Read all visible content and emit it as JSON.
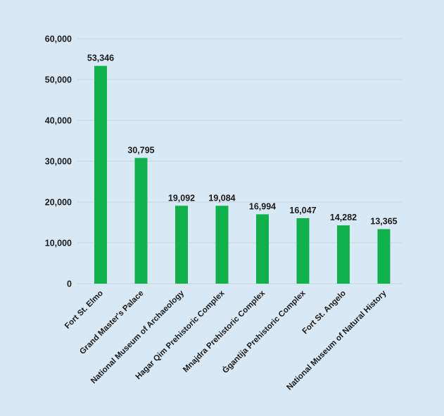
{
  "chart_data": {
    "type": "bar",
    "title": "",
    "xlabel": "",
    "ylabel": "",
    "ylim": [
      0,
      60000
    ],
    "yticks": [
      0,
      10000,
      20000,
      30000,
      40000,
      50000,
      60000
    ],
    "ytick_labels": [
      "0",
      "10,000",
      "20,000",
      "30,000",
      "40,000",
      "50,000",
      "60,000"
    ],
    "grid": true,
    "legend": "none",
    "bar_color": "#10b14a",
    "categories": [
      "Fort St. Elmo",
      "Grand Master's Palace",
      "National Museum of Archaeology",
      "Hagar Qim Prehistoric Complex",
      "Mnajdra Prehistoric Complex",
      "Ġgantija Prehistoric Complex",
      "Fort St. Angelo",
      "National Museum of Natural History"
    ],
    "values": [
      53346,
      30795,
      19092,
      19084,
      16994,
      16047,
      14282,
      13365
    ],
    "value_labels": [
      "53,346",
      "30,795",
      "19,092",
      "19,084",
      "16,994",
      "16,047",
      "14,282",
      "13,365"
    ]
  }
}
